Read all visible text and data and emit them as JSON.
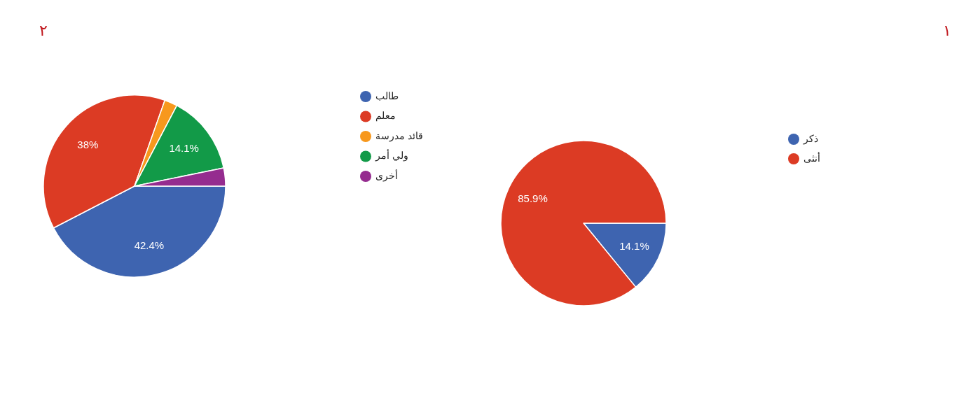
{
  "chart_data": [
    {
      "type": "pie",
      "categories": [
        "طالب",
        "معلم",
        "قائد مدرسة",
        "ولي أمر",
        "أخرى"
      ],
      "values": [
        42.4,
        38,
        2.3,
        14.1,
        3.2
      ],
      "colors": [
        "#3e64b0",
        "#dc3b24",
        "#f7981d",
        "#129a48",
        "#952c8f"
      ],
      "value_labels": [
        "42.4%",
        "38%",
        null,
        "14.1%",
        null
      ],
      "legend": "right",
      "annotations": [
        "٢"
      ]
    },
    {
      "type": "pie",
      "categories": [
        "ذكر",
        "أنثى"
      ],
      "values": [
        14.1,
        85.9
      ],
      "colors": [
        "#3e64b0",
        "#dc3b24"
      ],
      "value_labels": [
        "14.1%",
        "85.9%"
      ],
      "legend": "right",
      "annotations": [
        "١"
      ]
    }
  ]
}
